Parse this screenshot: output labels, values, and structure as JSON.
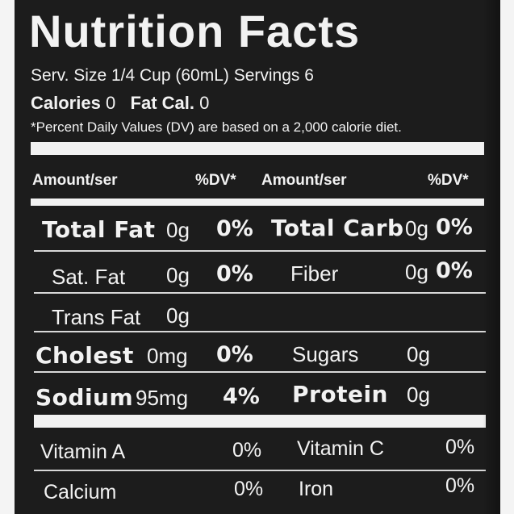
{
  "label": {
    "title": "Nutrition Facts",
    "serving_line": "Serv. Size 1/4 Cup (60mL) Servings 6",
    "calories_label": "Calories",
    "calories_value": "0",
    "fat_cal_label": "Fat Cal.",
    "fat_cal_value": "0",
    "dv_note": "*Percent Daily Values (DV) are based on a 2,000 calorie diet.",
    "header": {
      "amount_left": "Amount/ser",
      "dv_left": "%DV*",
      "amount_right": "Amount/ser",
      "dv_right": "%DV*"
    },
    "rows": [
      {
        "left_name": "Total Fat",
        "left_amount": "0g",
        "left_dv": "0%",
        "right_name": "Total Carb",
        "right_amount": "0g",
        "right_dv": "0%"
      },
      {
        "left_name": "Sat. Fat",
        "left_amount": "0g",
        "left_dv": "0%",
        "right_name": "Fiber",
        "right_amount": "0g",
        "right_dv": "0%"
      },
      {
        "left_name": "Trans Fat",
        "left_amount": "0g"
      },
      {
        "left_name": "Cholest",
        "left_amount": "0mg",
        "left_dv": "0%",
        "right_name": "Sugars",
        "right_amount": "0g"
      },
      {
        "left_name": "Sodium",
        "left_amount": "95mg",
        "left_dv": "4%",
        "right_name": "Protein",
        "right_amount": "0g"
      }
    ],
    "vitamins": [
      {
        "left_name": "Vitamin A",
        "left_dv": "0%",
        "right_name": "Vitamin C",
        "right_dv": "0%"
      },
      {
        "left_name": "Calcium",
        "left_dv": "0%",
        "right_name": "Iron",
        "right_dv": "0%"
      }
    ]
  }
}
